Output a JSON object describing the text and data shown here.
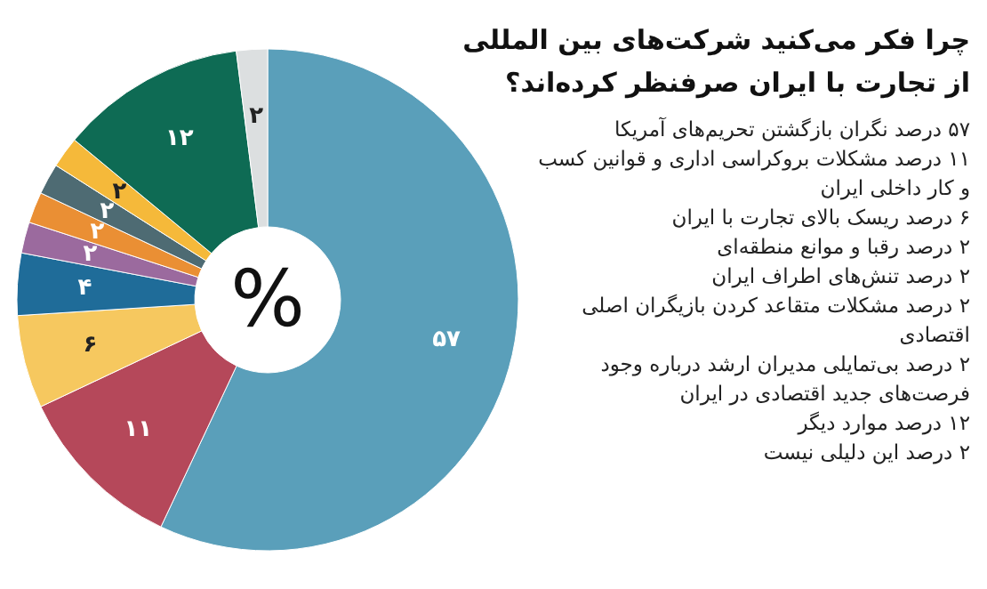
{
  "chart_data": {
    "type": "donut",
    "title": "چرا فکر می‌کنید شرکت‌های بین المللی از تجارت با ایران صرفنظر کرده‌اند؟",
    "categories": [
      null,
      null,
      null,
      null,
      null,
      null,
      null,
      null,
      null,
      null
    ],
    "values": [
      57,
      11,
      6,
      4,
      2,
      2,
      2,
      2,
      12,
      2
    ],
    "value_labels": [
      "۵۷",
      "۱۱",
      "۶",
      "۴",
      "۲",
      "۲",
      "۲",
      "۲",
      "۱۲",
      "۲"
    ],
    "colors": [
      "#5a9fba",
      "#b5485a",
      "#f6c85f",
      "#1f6c99",
      "#9b6a9e",
      "#ea8f34",
      "#4e6b73",
      "#f5b93a",
      "#0e6b54",
      "#dcdfe0"
    ],
    "annotations": [
      "%",
      "۵۷ درصد نگران بازگشتن تحریم‌های آمریکا",
      "۱۱ درصد مشکلات بروکراسی اداری و قوانین کسب و کار داخلی ایران",
      "۶ درصد ریسک بالای تجارت با ایران",
      "۲ درصد رقبا و موانع منطقه‌ای",
      "۲ درصد تنش‌های اطراف ایران",
      "۲ درصد مشکلات متقاعد کردن بازیگران اصلی اقتصادی",
      "۲ درصد بی‌تمایلی مدیران ارشد درباره وجود فرصت‌های جدید اقتصادی در ایران",
      "۱۲ درصد موارد دیگر",
      "۲ درصد این دلیلی نیست"
    ]
  }
}
